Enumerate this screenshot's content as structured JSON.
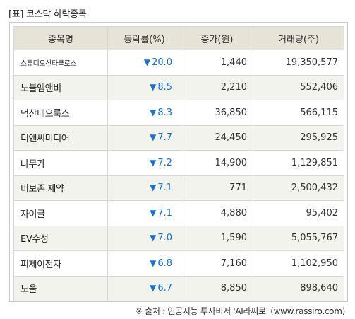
{
  "title": "[표] 코스닥 하락종목",
  "columns": [
    "종목명",
    "등락률(%)",
    "종가(원)",
    "거래량(주)"
  ],
  "arrow": "▼",
  "rows": [
    {
      "name": "스튜디오산타클로스",
      "rate": "20.0",
      "price": "1,440",
      "volume": "19,350,577"
    },
    {
      "name": "노블엠앤비",
      "rate": "8.5",
      "price": "2,210",
      "volume": "552,406"
    },
    {
      "name": "덕산네오룩스",
      "rate": "8.3",
      "price": "36,850",
      "volume": "566,115"
    },
    {
      "name": "디앤씨미디어",
      "rate": "7.7",
      "price": "24,450",
      "volume": "295,925"
    },
    {
      "name": "나무가",
      "rate": "7.2",
      "price": "14,900",
      "volume": "1,129,851"
    },
    {
      "name": "비보존 제약",
      "rate": "7.1",
      "price": "771",
      "volume": "2,500,432"
    },
    {
      "name": "자이글",
      "rate": "7.1",
      "price": "4,880",
      "volume": "95,402"
    },
    {
      "name": "EV수성",
      "rate": "7.0",
      "price": "1,590",
      "volume": "5,055,767"
    },
    {
      "name": "피제이전자",
      "rate": "6.8",
      "price": "7,160",
      "volume": "1,102,950"
    },
    {
      "name": "노을",
      "rate": "6.7",
      "price": "8,850",
      "volume": "898,640"
    }
  ],
  "footer": "※ 출처 : 인공지능 투자비서 'AI라씨로' (www.rassiro.com)",
  "colors": {
    "down": "#1a73c8",
    "header_bg": "#e6e3d7",
    "stripe_bg": "#f3f3ee"
  }
}
